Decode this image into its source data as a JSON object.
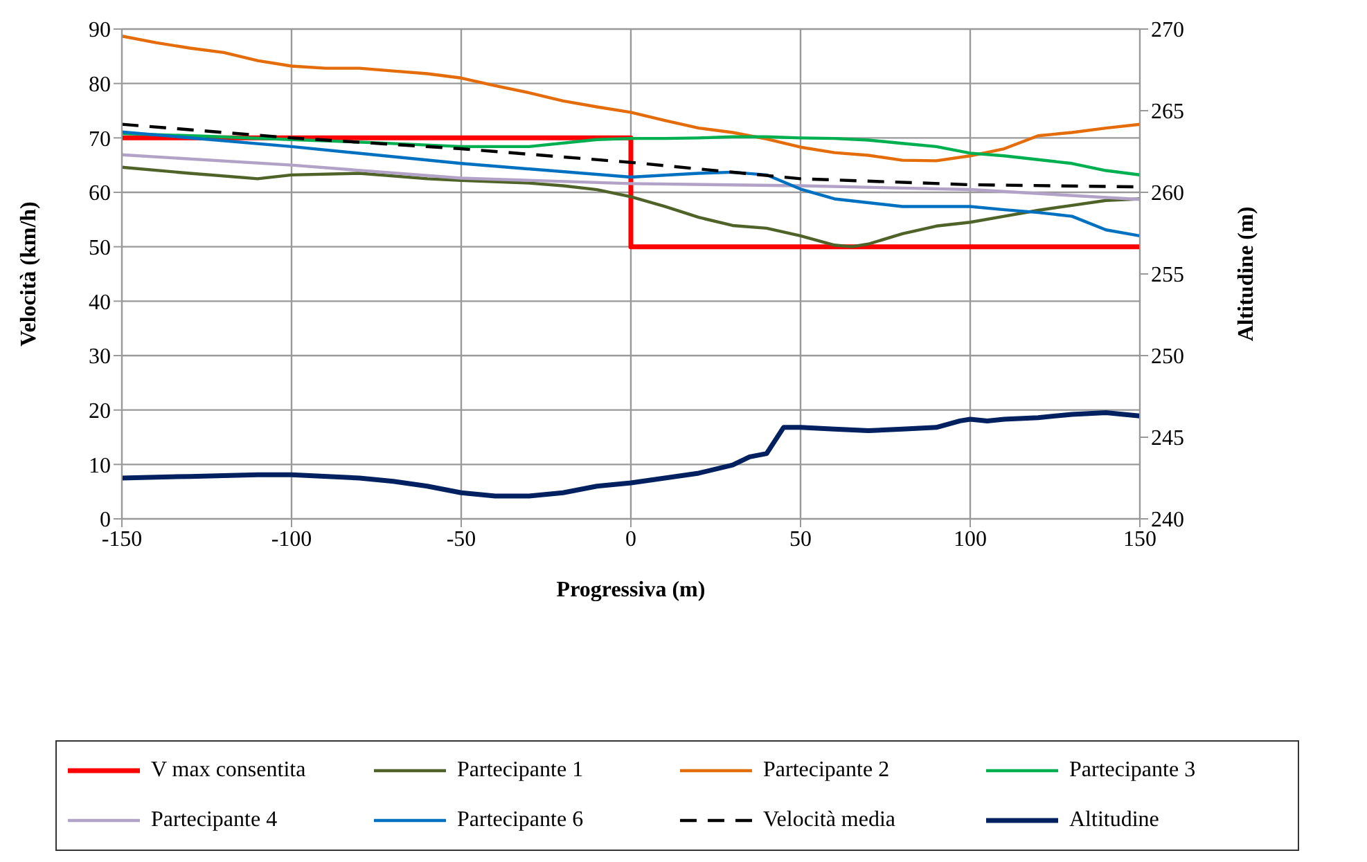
{
  "chart_data": {
    "type": "line",
    "xlabel": "Progressiva (m)",
    "ylabel": "Velocità (km/h)",
    "y2label": "Altitudine (m)",
    "xlim": [
      -150,
      150
    ],
    "xticks": [
      -150,
      -100,
      -50,
      0,
      50,
      100,
      150
    ],
    "ylim": [
      0,
      90
    ],
    "yticks": [
      0,
      10,
      20,
      30,
      40,
      50,
      60,
      70,
      80,
      90
    ],
    "y2lim": [
      240,
      270
    ],
    "y2ticks": [
      240,
      245,
      250,
      255,
      260,
      265,
      270
    ],
    "grid": true,
    "legend": "bottom",
    "marker": "none",
    "line_style": "solid",
    "series": [
      {
        "name": "V max consentita",
        "color": "#ff0000",
        "x": [
          -150,
          0,
          0,
          150
        ],
        "values": [
          70,
          70,
          50,
          50
        ]
      },
      {
        "name": "Partecipante 1",
        "color": "#4f6228",
        "x": [
          -150,
          -130,
          -110,
          -100,
          -80,
          -60,
          -50,
          -30,
          -20,
          -10,
          0,
          10,
          20,
          30,
          40,
          50,
          60,
          65,
          70,
          80,
          90,
          100,
          110,
          120,
          130,
          140,
          150
        ],
        "values": [
          64.6,
          63.5,
          62.5,
          63.2,
          63.5,
          62.5,
          62.2,
          61.7,
          61.2,
          60.5,
          59.2,
          57.4,
          55.4,
          53.9,
          53.4,
          52.0,
          50.3,
          50.0,
          50.5,
          52.4,
          53.8,
          54.5,
          55.6,
          56.7,
          57.6,
          58.5,
          58.8
        ]
      },
      {
        "name": "Partecipante 2",
        "color": "#e46c0a",
        "x": [
          -150,
          -140,
          -130,
          -120,
          -110,
          -100,
          -90,
          -80,
          -70,
          -60,
          -50,
          -40,
          -30,
          -20,
          -10,
          0,
          10,
          20,
          30,
          40,
          50,
          60,
          70,
          80,
          90,
          100,
          110,
          120,
          130,
          140,
          150
        ],
        "values": [
          88.7,
          87.5,
          86.5,
          85.7,
          84.2,
          83.2,
          82.8,
          82.8,
          82.3,
          81.8,
          81.0,
          79.6,
          78.3,
          76.8,
          75.7,
          74.7,
          73.2,
          71.8,
          71.0,
          69.8,
          68.3,
          67.3,
          66.8,
          65.9,
          65.8,
          66.7,
          68.0,
          70.4,
          71.0,
          71.8,
          72.5
        ]
      },
      {
        "name": "Partecipante 3",
        "color": "#00b050",
        "x": [
          -150,
          -125,
          -100,
          -75,
          -50,
          -30,
          -10,
          0,
          10,
          20,
          30,
          40,
          50,
          60,
          70,
          80,
          90,
          100,
          110,
          120,
          130,
          140,
          150
        ],
        "values": [
          70.8,
          70.3,
          69.7,
          69.1,
          68.4,
          68.4,
          69.7,
          69.9,
          69.9,
          70.0,
          70.2,
          70.2,
          70.0,
          69.9,
          69.6,
          69.0,
          68.4,
          67.2,
          66.7,
          66.0,
          65.3,
          64.0,
          63.2
        ]
      },
      {
        "name": "Partecipante 4",
        "color": "#b3a2c7",
        "x": [
          -150,
          -100,
          -50,
          0,
          50,
          100,
          150
        ],
        "values": [
          66.9,
          65.0,
          62.6,
          61.6,
          61.2,
          60.5,
          58.7
        ]
      },
      {
        "name": "Partecipante 6",
        "color": "#0070c0",
        "x": [
          -150,
          -100,
          -50,
          0,
          20,
          30,
          40,
          50,
          60,
          70,
          80,
          90,
          100,
          110,
          120,
          130,
          140,
          150
        ],
        "values": [
          71.1,
          68.4,
          65.3,
          62.8,
          63.5,
          63.7,
          63.2,
          60.6,
          58.8,
          58.1,
          57.4,
          57.4,
          57.4,
          56.8,
          56.3,
          55.6,
          53.1,
          52.0
        ]
      },
      {
        "name": "Velocità media",
        "color": "#000000",
        "line_style": "dashed",
        "x": [
          -150,
          -100,
          -50,
          0,
          50,
          100,
          150
        ],
        "values": [
          72.5,
          70.0,
          68.0,
          65.5,
          62.5,
          61.4,
          61.0
        ]
      },
      {
        "name": "Altitudine",
        "color": "#002060",
        "axis": "y2",
        "x": [
          -150,
          -130,
          -110,
          -100,
          -80,
          -70,
          -60,
          -50,
          -40,
          -30,
          -20,
          -10,
          0,
          10,
          20,
          30,
          35,
          40,
          45,
          50,
          60,
          70,
          80,
          90,
          97,
          100,
          105,
          110,
          120,
          130,
          140,
          150
        ],
        "values": [
          242.5,
          242.6,
          242.7,
          242.7,
          242.5,
          242.3,
          242.0,
          241.6,
          241.4,
          241.4,
          241.6,
          242.0,
          242.2,
          242.5,
          242.8,
          243.3,
          243.8,
          244.0,
          245.6,
          245.6,
          245.5,
          245.4,
          245.5,
          245.6,
          246.0,
          246.1,
          246.0,
          246.1,
          246.2,
          246.4,
          246.5,
          246.3
        ]
      }
    ]
  }
}
